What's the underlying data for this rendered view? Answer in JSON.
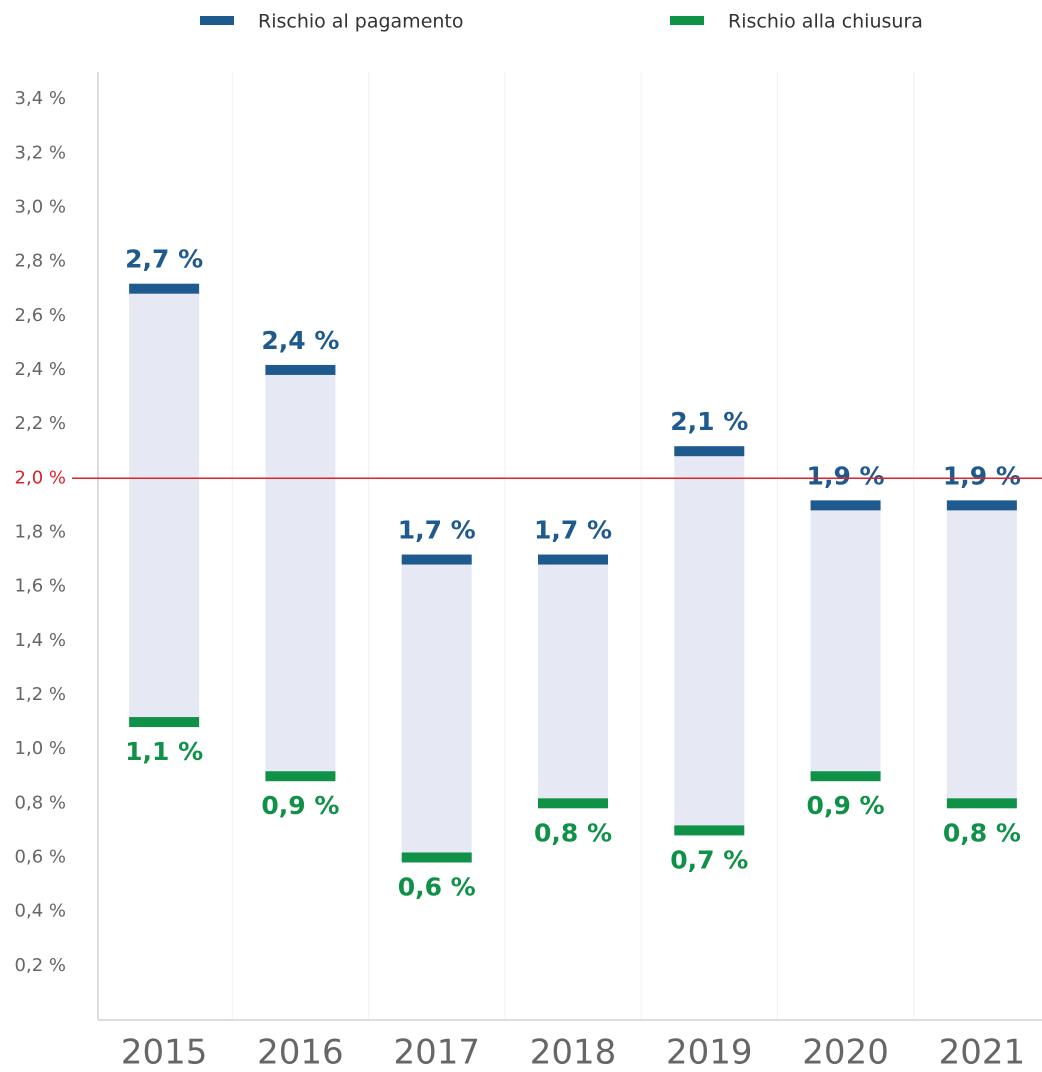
{
  "chart_data": {
    "type": "range_bar",
    "categories": [
      "2015",
      "2016",
      "2017",
      "2018",
      "2019",
      "2020",
      "2021"
    ],
    "series": [
      {
        "name": "Rischio al pagamento",
        "color": "#1f5a8e",
        "values": [
          2.7,
          2.4,
          1.7,
          1.7,
          2.1,
          1.9,
          1.9
        ],
        "value_labels": [
          "2,7 %",
          "2,4 %",
          "1,7 %",
          "1,7 %",
          "2,1 %",
          "1,9 %",
          "1,9 %"
        ]
      },
      {
        "name": "Rischio alla chiusura",
        "color": "#0f9148",
        "values": [
          1.1,
          0.9,
          0.6,
          0.8,
          0.7,
          0.9,
          0.8
        ],
        "value_labels": [
          "1,1 %",
          "0,9 %",
          "0,6 %",
          "0,8 %",
          "0,7 %",
          "0,9 %",
          "0,8 %"
        ]
      }
    ],
    "range_color": "#e6e9f3",
    "reference_line": {
      "value": 2.0,
      "color": "#d9252b"
    },
    "ylim": [
      0,
      3.5
    ],
    "yticks": [
      {
        "value": 0.2,
        "label": "0,2 %"
      },
      {
        "value": 0.4,
        "label": "0,4 %"
      },
      {
        "value": 0.6,
        "label": "0,6 %"
      },
      {
        "value": 0.8,
        "label": "0,8 %"
      },
      {
        "value": 1.0,
        "label": "1,0 %"
      },
      {
        "value": 1.2,
        "label": "1,2 %"
      },
      {
        "value": 1.4,
        "label": "1,4 %"
      },
      {
        "value": 1.6,
        "label": "1,6 %"
      },
      {
        "value": 1.8,
        "label": "1,8 %"
      },
      {
        "value": 2.0,
        "label": "2,0 %"
      },
      {
        "value": 2.2,
        "label": "2,2 %"
      },
      {
        "value": 2.4,
        "label": "2,4 %"
      },
      {
        "value": 2.6,
        "label": "2,6 %"
      },
      {
        "value": 2.8,
        "label": "2,8 %"
      },
      {
        "value": 3.0,
        "label": "3,0 %"
      },
      {
        "value": 3.2,
        "label": "3,2 %"
      },
      {
        "value": 3.4,
        "label": "3,4 %"
      }
    ],
    "legend": "top"
  }
}
